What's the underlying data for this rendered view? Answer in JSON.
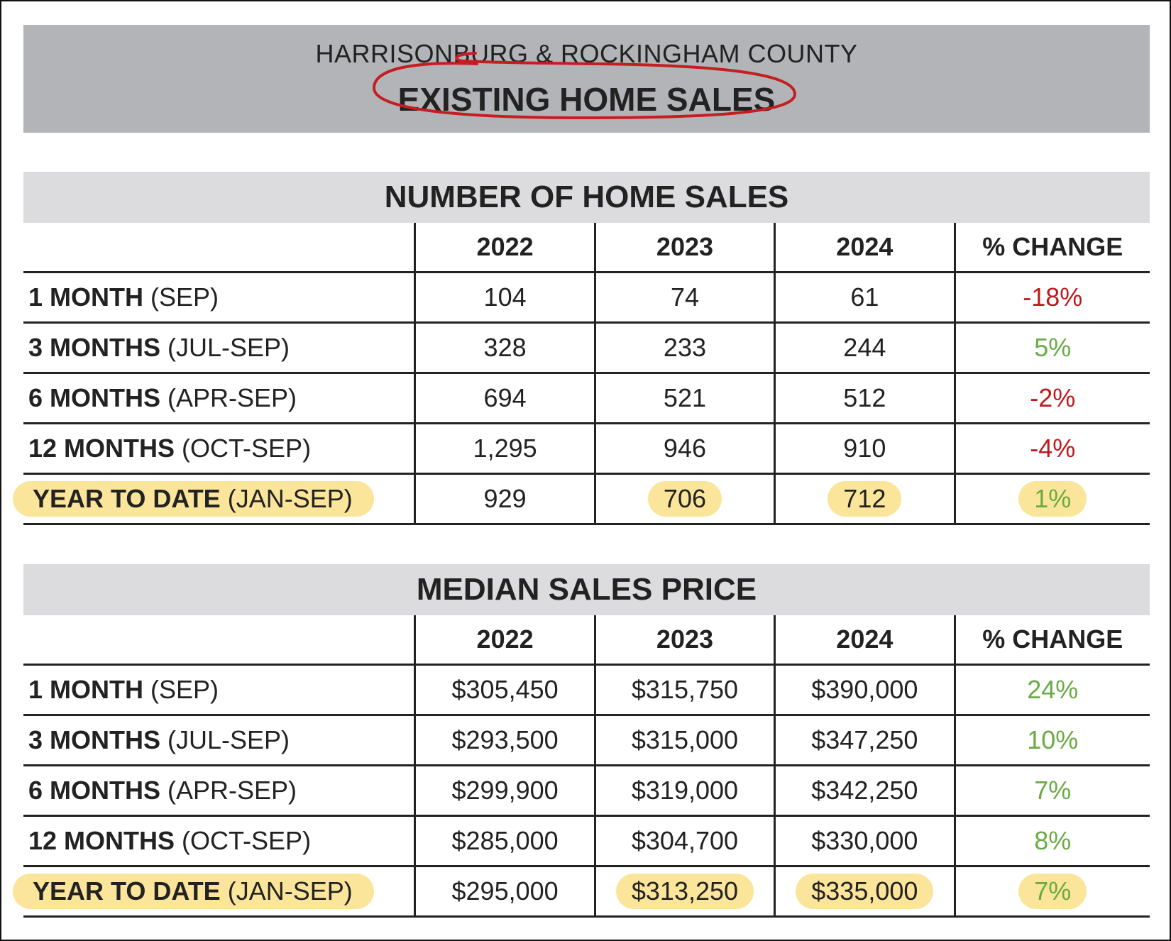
{
  "header": {
    "subtitle": "HARRISONBURG & ROCKINGHAM COUNTY",
    "title": "EXISTING HOME SALES",
    "circle_color": "#c41e22"
  },
  "tables": [
    {
      "title": "NUMBER OF HOME SALES",
      "columns": [
        "",
        "2022",
        "2023",
        "2024",
        "% CHANGE"
      ],
      "rows": [
        {
          "label_bold": "1 MONTH",
          "label_rest": " (SEP)",
          "v2022": "104",
          "v2023": "74",
          "v2024": "61",
          "change": "-18%",
          "trend": "neg"
        },
        {
          "label_bold": "3 MONTHS",
          "label_rest": " (JUL-SEP)",
          "v2022": "328",
          "v2023": "233",
          "v2024": "244",
          "change": "5%",
          "trend": "pos"
        },
        {
          "label_bold": "6 MONTHS",
          "label_rest": " (APR-SEP)",
          "v2022": "694",
          "v2023": "521",
          "v2024": "512",
          "change": "-2%",
          "trend": "neg"
        },
        {
          "label_bold": "12 MONTHS",
          "label_rest": " (OCT-SEP)",
          "v2022": "1,295",
          "v2023": "946",
          "v2024": "910",
          "change": "-4%",
          "trend": "neg"
        },
        {
          "label_bold": "YEAR TO DATE",
          "label_rest": " (JAN-SEP)",
          "v2022": "929",
          "v2023": "706",
          "v2024": "712",
          "change": "1%",
          "trend": "pos",
          "highlight": true
        }
      ]
    },
    {
      "title": "MEDIAN SALES PRICE",
      "columns": [
        "",
        "2022",
        "2023",
        "2024",
        "% CHANGE"
      ],
      "rows": [
        {
          "label_bold": "1 MONTH",
          "label_rest": " (SEP)",
          "v2022": "$305,450",
          "v2023": "$315,750",
          "v2024": "$390,000",
          "change": "24%",
          "trend": "pos"
        },
        {
          "label_bold": "3 MONTHS",
          "label_rest": " (JUL-SEP)",
          "v2022": "$293,500",
          "v2023": "$315,000",
          "v2024": "$347,250",
          "change": "10%",
          "trend": "pos"
        },
        {
          "label_bold": "6 MONTHS",
          "label_rest": " (APR-SEP)",
          "v2022": "$299,900",
          "v2023": "$319,000",
          "v2024": "$342,250",
          "change": "7%",
          "trend": "pos"
        },
        {
          "label_bold": "12 MONTHS",
          "label_rest": " (OCT-SEP)",
          "v2022": "$285,000",
          "v2023": "$304,700",
          "v2024": "$330,000",
          "change": "8%",
          "trend": "pos"
        },
        {
          "label_bold": "YEAR TO DATE",
          "label_rest": " (JAN-SEP)",
          "v2022": "$295,000",
          "v2023": "$313,250",
          "v2024": "$335,000",
          "change": "7%",
          "trend": "pos",
          "highlight": true
        }
      ]
    }
  ]
}
